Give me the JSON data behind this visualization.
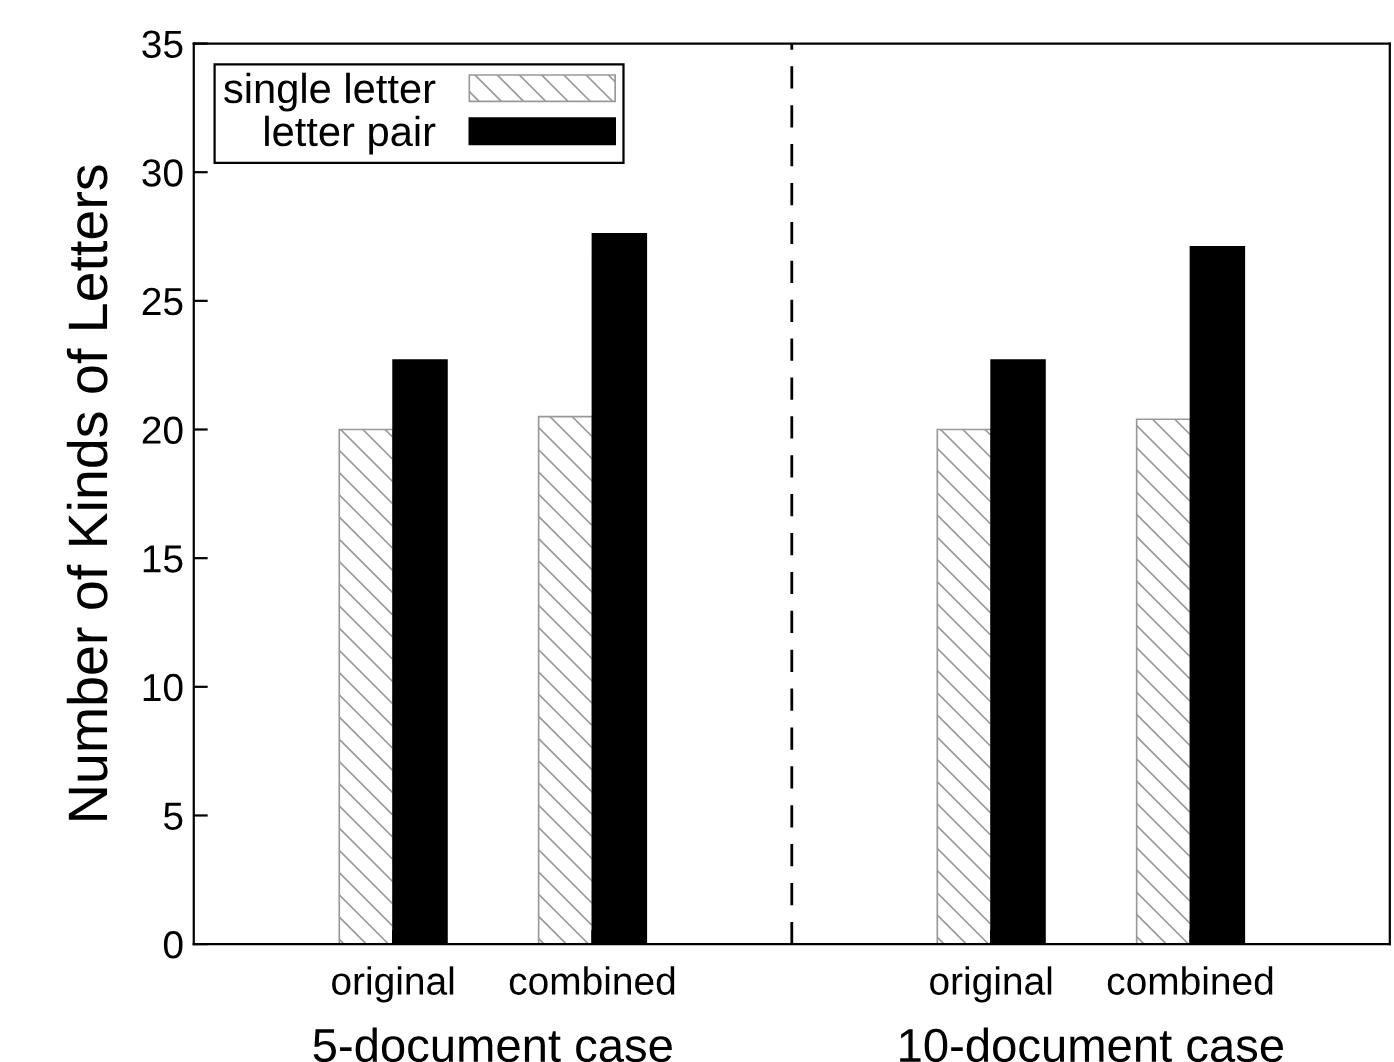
{
  "chart_data": {
    "type": "bar",
    "ylabel": "Number of Kinds of Letters",
    "categories": [
      "original",
      "combined",
      null,
      "original",
      "combined"
    ],
    "series": [
      {
        "name": "single letter",
        "color": "#999999",
        "values": [
          20.0,
          20.5,
          null,
          20.0,
          20.4
        ]
      },
      {
        "name": "letter pair",
        "color": "#000000",
        "values": [
          22.7,
          27.6,
          null,
          22.7,
          27.1
        ]
      }
    ],
    "ylim": [
      0,
      35
    ],
    "yticks": [
      0,
      5,
      10,
      15,
      20,
      25,
      30,
      35
    ],
    "ref_lines": [
      {
        "axis": "x",
        "line_style": "dashed",
        "color": "#000000"
      }
    ],
    "annotations": [
      "5-document case",
      "10-document case"
    ],
    "legend": "top left"
  }
}
